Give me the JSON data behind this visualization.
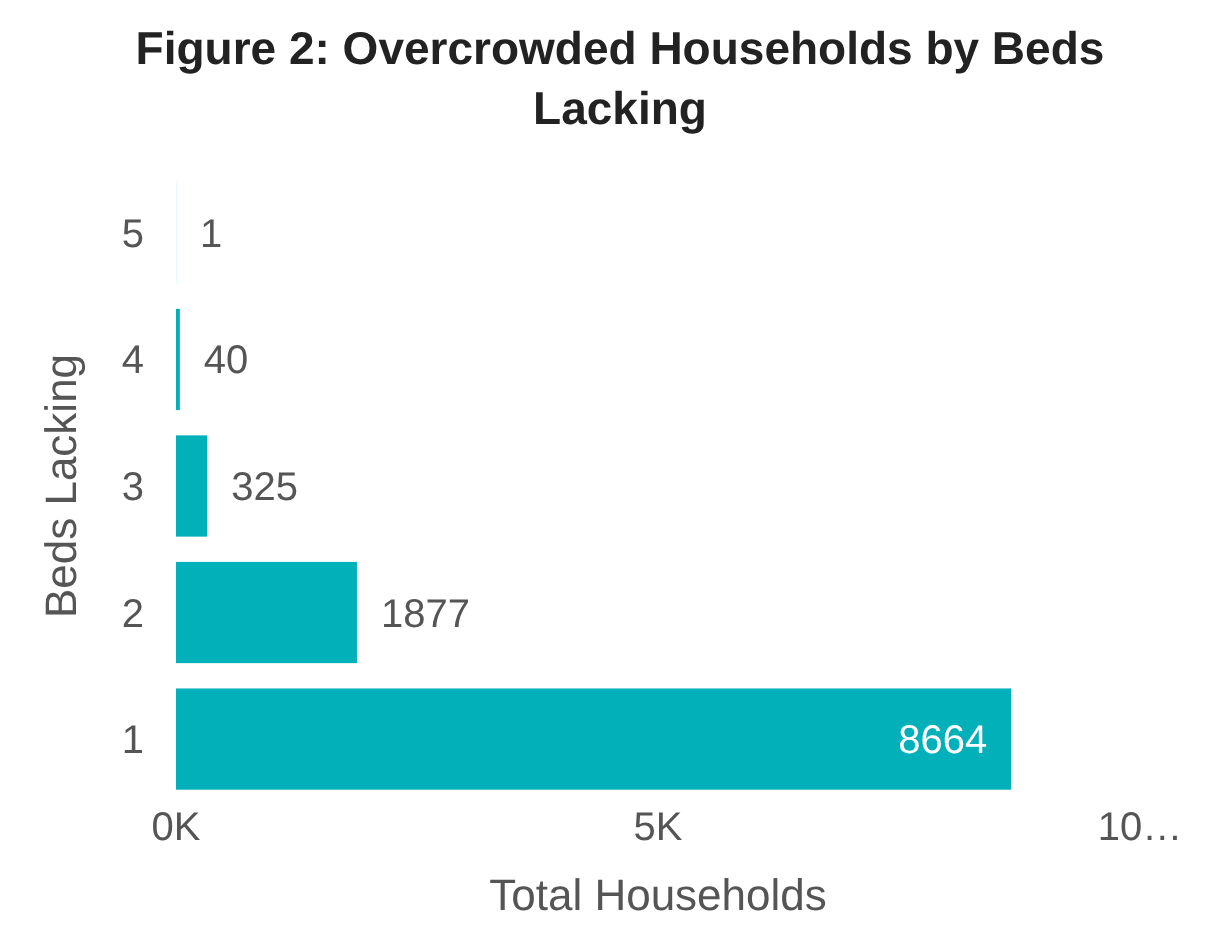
{
  "chart_data": {
    "type": "bar",
    "orientation": "horizontal",
    "title": "Figure 2: Overcrowded Households by Beds Lacking",
    "xlabel": "Total Households",
    "ylabel": "Beds Lacking",
    "categories": [
      "5",
      "4",
      "3",
      "2",
      "1"
    ],
    "values": [
      1,
      40,
      325,
      1877,
      8664
    ],
    "color": "#01b0b8",
    "xlim": [
      0,
      10000
    ],
    "xticks": [
      {
        "value": 0,
        "label": "0K"
      },
      {
        "value": 5000,
        "label": "5K"
      },
      {
        "value": 10000,
        "label": "10…"
      }
    ],
    "data_labels": true,
    "grid": false
  }
}
